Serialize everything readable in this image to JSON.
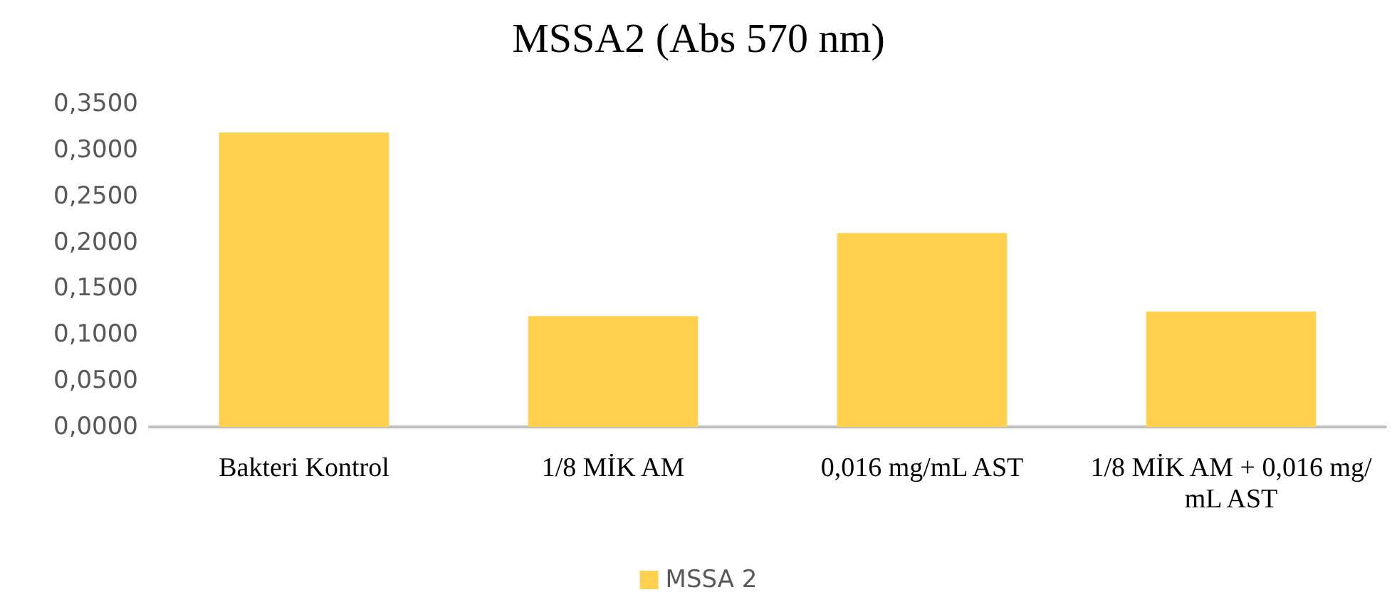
{
  "chart_data": {
    "type": "bar",
    "title": "MSSA2 (Abs 570 nm)",
    "categories": [
      "Bakteri Kontrol",
      "1/8 MİK AM",
      "0,016 mg/mL AST",
      "1/8 MİK AM + 0,016 mg/mL AST"
    ],
    "series": [
      {
        "name": "MSSA 2",
        "color": "#ffd14f",
        "values": [
          0.319,
          0.12,
          0.21,
          0.125
        ]
      }
    ],
    "ylim": [
      0,
      0.35
    ],
    "yticks": [
      {
        "value": 0,
        "label": "0,0000"
      },
      {
        "value": 0.05,
        "label": "0,0500"
      },
      {
        "value": 0.1,
        "label": "0,1000"
      },
      {
        "value": 0.15,
        "label": "0,1500"
      },
      {
        "value": 0.2,
        "label": "0,2000"
      },
      {
        "value": 0.25,
        "label": "0,2500"
      },
      {
        "value": 0.3,
        "label": "0,3000"
      },
      {
        "value": 0.35,
        "label": "0,3500"
      }
    ],
    "grid": false,
    "legend": "bottom"
  }
}
